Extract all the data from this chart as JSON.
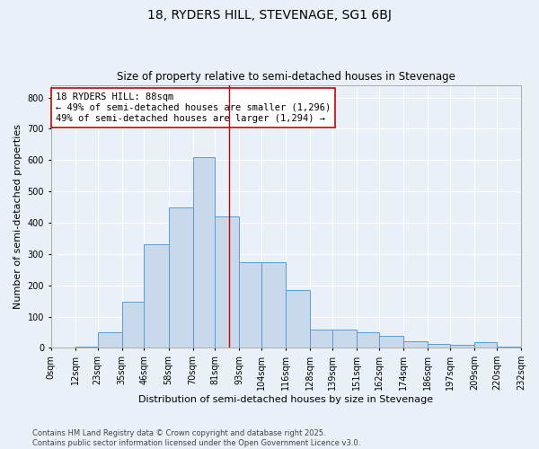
{
  "title": "18, RYDERS HILL, STEVENAGE, SG1 6BJ",
  "subtitle": "Size of property relative to semi-detached houses in Stevenage",
  "xlabel": "Distribution of semi-detached houses by size in Stevenage",
  "ylabel": "Number of semi-detached properties",
  "annotation_title": "18 RYDERS HILL: 88sqm",
  "annotation_line1": "← 49% of semi-detached houses are smaller (1,296)",
  "annotation_line2": "49% of semi-detached houses are larger (1,294) →",
  "property_size": 88,
  "bin_edges": [
    0,
    12,
    23,
    35,
    46,
    58,
    70,
    81,
    93,
    104,
    116,
    128,
    139,
    151,
    162,
    174,
    186,
    197,
    209,
    220,
    232
  ],
  "bin_labels": [
    "0sqm",
    "12sqm",
    "23sqm",
    "35sqm",
    "46sqm",
    "58sqm",
    "70sqm",
    "81sqm",
    "93sqm",
    "104sqm",
    "116sqm",
    "128sqm",
    "139sqm",
    "151sqm",
    "162sqm",
    "174sqm",
    "186sqm",
    "197sqm",
    "209sqm",
    "220sqm",
    "232sqm"
  ],
  "bar_heights": [
    2,
    5,
    50,
    148,
    330,
    450,
    608,
    420,
    275,
    275,
    185,
    60,
    60,
    50,
    38,
    20,
    12,
    10,
    18,
    5
  ],
  "bar_color": "#c9d9ec",
  "bar_edge_color": "#5b9bd5",
  "vline_color": "#cc0000",
  "vline_x": 88,
  "background_color": "#eaf0f8",
  "grid_color": "#ffffff",
  "ylim": [
    0,
    840
  ],
  "yticks": [
    0,
    100,
    200,
    300,
    400,
    500,
    600,
    700,
    800
  ],
  "footer_line1": "Contains HM Land Registry data © Crown copyright and database right 2025.",
  "footer_line2": "Contains public sector information licensed under the Open Government Licence v3.0.",
  "title_fontsize": 10,
  "subtitle_fontsize": 8.5,
  "axis_label_fontsize": 8,
  "tick_fontsize": 7,
  "footer_fontsize": 6,
  "annot_fontsize": 7.5
}
